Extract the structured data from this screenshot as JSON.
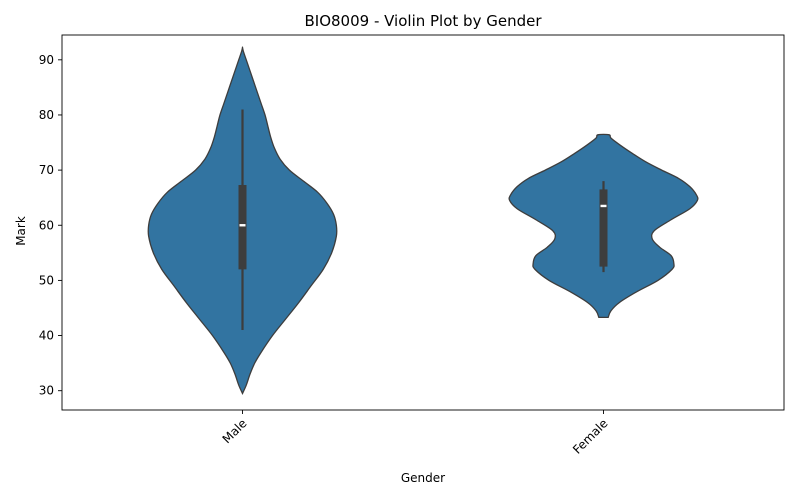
{
  "chart_data": {
    "type": "violin",
    "title": "BIO8009 - Violin Plot by Gender",
    "xlabel": "Gender",
    "ylabel": "Mark",
    "ylim": [
      26.5,
      94.5
    ],
    "yticks": [
      30,
      40,
      50,
      60,
      70,
      80,
      90
    ],
    "grid": false,
    "categories": [
      "Male",
      "Female"
    ],
    "color": "#3274a1",
    "violins": [
      {
        "category": "Male",
        "whisker": [
          41,
          81
        ],
        "q1": 52,
        "median": 60,
        "q3": 67.3,
        "profile": [
          [
            29.5,
            0
          ],
          [
            31,
            0.04
          ],
          [
            33,
            0.08
          ],
          [
            35,
            0.13
          ],
          [
            37,
            0.2
          ],
          [
            40,
            0.32
          ],
          [
            43,
            0.46
          ],
          [
            46,
            0.6
          ],
          [
            49,
            0.73
          ],
          [
            52,
            0.86
          ],
          [
            55,
            0.95
          ],
          [
            58,
            1.0
          ],
          [
            60,
            1.0
          ],
          [
            62,
            0.97
          ],
          [
            64,
            0.9
          ],
          [
            66,
            0.8
          ],
          [
            68,
            0.65
          ],
          [
            70,
            0.5
          ],
          [
            72,
            0.4
          ],
          [
            74,
            0.34
          ],
          [
            76,
            0.3
          ],
          [
            78,
            0.27
          ],
          [
            80,
            0.24
          ],
          [
            82,
            0.2
          ],
          [
            84,
            0.16
          ],
          [
            86,
            0.12
          ],
          [
            88,
            0.08
          ],
          [
            90,
            0.04
          ],
          [
            91.5,
            0.01
          ],
          [
            92.2,
            0
          ]
        ]
      },
      {
        "category": "Female",
        "whisker": [
          51.5,
          68
        ],
        "q1": 52.5,
        "median": 63.5,
        "q3": 66.5,
        "profile": [
          [
            43.3,
            0.05
          ],
          [
            44.5,
            0.08
          ],
          [
            46,
            0.17
          ],
          [
            48,
            0.36
          ],
          [
            50,
            0.58
          ],
          [
            52,
            0.73
          ],
          [
            53,
            0.75
          ],
          [
            54.5,
            0.72
          ],
          [
            56,
            0.6
          ],
          [
            57.5,
            0.52
          ],
          [
            59,
            0.54
          ],
          [
            61,
            0.72
          ],
          [
            63,
            0.92
          ],
          [
            64.5,
            1.0
          ],
          [
            65.5,
            0.99
          ],
          [
            67,
            0.92
          ],
          [
            68.5,
            0.8
          ],
          [
            70,
            0.62
          ],
          [
            71.5,
            0.45
          ],
          [
            73,
            0.31
          ],
          [
            74.5,
            0.18
          ],
          [
            75.8,
            0.08
          ],
          [
            76.4,
            0.06
          ]
        ]
      }
    ]
  }
}
